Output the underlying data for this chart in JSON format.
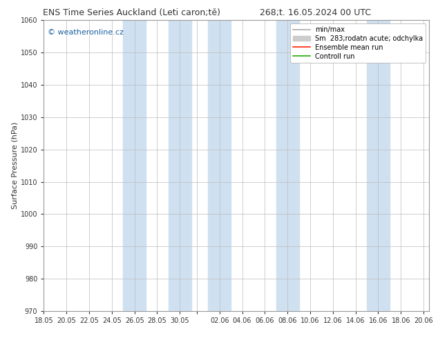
{
  "title_left": "ENS Time Series Auckland (Leti caron;tě)",
  "title_right": "268;t. 16.05.2024 00 UTC",
  "ylabel": "Surface Pressure (hPa)",
  "ylim": [
    970,
    1060
  ],
  "yticks": [
    970,
    980,
    990,
    1000,
    1010,
    1020,
    1030,
    1040,
    1050,
    1060
  ],
  "watermark": "© weatheronline.cz",
  "bg_color": "#ffffff",
  "band_color": "#cfe0f0",
  "grid_color": "#bbbbbb",
  "x_tick_labels": [
    "18.05",
    "20.05",
    "22.05",
    "24.05",
    "26.05",
    "28.05",
    "30.05",
    "",
    "02.06",
    "04.06",
    "06.06",
    "08.06",
    "10.06",
    "12.06",
    "14.06",
    "16.06",
    "18.06",
    "20.06"
  ],
  "legend_minmax_color": "#aaaaaa",
  "legend_spread_color": "#cccccc",
  "legend_mean_color": "#ff2200",
  "legend_control_color": "#22aa00",
  "title_fontsize": 9,
  "ylabel_fontsize": 8,
  "tick_fontsize": 7,
  "watermark_fontsize": 8,
  "legend_fontsize": 7
}
